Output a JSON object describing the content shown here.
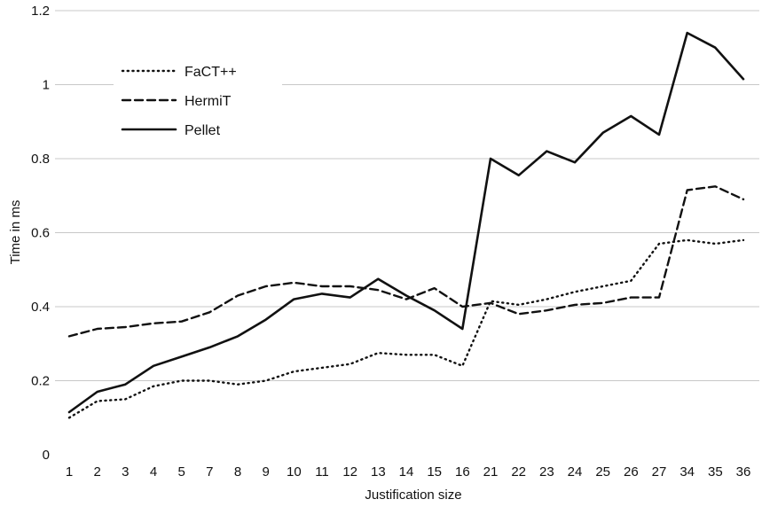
{
  "chart_data": {
    "type": "line",
    "title": "",
    "xlabel": "Justification size",
    "ylabel": "Time in ms",
    "categories": [
      "1",
      "2",
      "3",
      "4",
      "5",
      "7",
      "8",
      "9",
      "10",
      "11",
      "12",
      "13",
      "14",
      "15",
      "16",
      "21",
      "22",
      "23",
      "24",
      "25",
      "26",
      "27",
      "34",
      "35",
      "36"
    ],
    "ylim": [
      0,
      1.2
    ],
    "yticks": [
      "0",
      "0.2",
      "0.4",
      "0.6",
      "0.8",
      "1",
      "1.2"
    ],
    "grid": true,
    "legend_position": "top-left",
    "series": [
      {
        "name": "FaCT++",
        "style": "dotted",
        "values": [
          0.1,
          0.145,
          0.15,
          0.185,
          0.2,
          0.2,
          0.19,
          0.2,
          0.225,
          0.235,
          0.245,
          0.275,
          0.27,
          0.27,
          0.24,
          0.415,
          0.405,
          0.42,
          0.44,
          0.455,
          0.47,
          0.57,
          0.58,
          0.57,
          0.58
        ]
      },
      {
        "name": "HermiT",
        "style": "dashed",
        "values": [
          0.32,
          0.34,
          0.345,
          0.355,
          0.36,
          0.385,
          0.43,
          0.455,
          0.465,
          0.455,
          0.455,
          0.445,
          0.42,
          0.45,
          0.4,
          0.41,
          0.38,
          0.39,
          0.405,
          0.41,
          0.425,
          0.425,
          0.715,
          0.725,
          0.69
        ]
      },
      {
        "name": "Pellet",
        "style": "solid",
        "values": [
          0.115,
          0.17,
          0.19,
          0.24,
          0.265,
          0.29,
          0.32,
          0.365,
          0.42,
          0.435,
          0.425,
          0.475,
          0.43,
          0.39,
          0.34,
          0.8,
          0.755,
          0.82,
          0.79,
          0.87,
          0.915,
          0.865,
          1.14,
          1.1,
          1.015
        ]
      }
    ]
  }
}
